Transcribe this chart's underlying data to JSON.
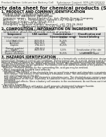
{
  "bg_color": "#f5f5f0",
  "header_left": "Product Name: Lithium Ion Battery Cell",
  "header_right_line1": "Substance Control: SDS-LIB-000610",
  "header_right_line2": "Established / Revision: Dec.7.2010",
  "title": "Safety data sheet for chemical products (SDS)",
  "section1_title": "1. PRODUCT AND COMPANY IDENTIFICATION",
  "section1_lines": [
    "  Product name: Lithium Ion Battery Cell",
    "  Product code: Cylindrical-type cell",
    "    (18186500, INR18650L, INR18650A)",
    "  Company name:   Sanyo Electric Co., Ltd.  Mobile Energy Company",
    "  Address:    2-20-1  Kamiishidori, Sumoto-City, Hyogo, Japan",
    "  Telephone number:  +81-799-26-4111",
    "  Fax number:  +81-799-26-4129",
    "  Emergency telephone number (daytime): +81-799-26-2662",
    "                        (Night and holiday): +81-799-26-4124"
  ],
  "section2_title": "2. COMPOSITION / INFORMATION ON INGREDIENTS",
  "section2_intro": "  Substance or preparation: Preparation",
  "section2_sub": "  Information about the chemical nature of product:",
  "table_headers": [
    "Component",
    "CAS number",
    "Concentration /\nConcentration range",
    "Classification and\nhazard labeling"
  ],
  "table_rows": [
    [
      "Lithium cobalt oxide\n(LiCoO2/LiCoO2x)",
      "-",
      "30-45%",
      "-"
    ],
    [
      "Iron",
      "7439-89-6",
      "15-25%",
      "-"
    ],
    [
      "Aluminum",
      "7429-90-5",
      "2-8%",
      "-"
    ],
    [
      "Graphite\n(Natural graphite)\n(Artificial graphite)",
      "7782-42-5\n7782-42-5",
      "10-25%",
      "-"
    ],
    [
      "Copper",
      "7440-50-8",
      "5-15%",
      "Sensitization of the skin\ngroup No.2"
    ],
    [
      "Organic electrolyte",
      "-",
      "10-25%",
      "Inflammable liquid"
    ]
  ],
  "section3_title": "3. HAZARDS IDENTIFICATION",
  "section3_para1": [
    "For the battery cell, chemical substances are stored in a hermetically sealed metal case, designed to withstand",
    "temperature changes in normal-use conditions. During normal use, as a result, during normal-use, there is no",
    "physical danger of ignition or explosion and there is no danger of hazardous materials leakage.",
    "  However, if exposed to a fire, added mechanical shocks, decomposed, under electric short-circuiting miss-use,",
    "the gas release valve can be operated. The battery cell case will be breached or fire patterns. Hazardous",
    "materials may be released.",
    "  Moreover, if heated strongly by the surrounding fire, acid gas may be emitted."
  ],
  "section3_bullet1": "Most important hazard and effects:",
  "section3_human": "  Human health effects:",
  "section3_inhalation": "    Inhalation: The release of the electrolyte has an anesthesia action and stimulates a respiratory tract.",
  "section3_skin": [
    "    Skin contact: The release of the electrolyte stimulates a skin. The electrolyte skin contact causes a",
    "    sore and stimulation on the skin."
  ],
  "section3_eye": [
    "    Eye contact: The release of the electrolyte stimulates eyes. The electrolyte eye contact causes a sore",
    "    and stimulation on the eye. Especially, a substance that causes a strong inflammation of the eye is",
    "    contained."
  ],
  "section3_env": [
    "    Environmental effects: Since a battery cell remains in the environment, do not throw out it into the",
    "    environment."
  ],
  "section3_bullet2": "Specific hazards:",
  "section3_specific": [
    "  If the electrolyte contacts with water, it will generate detrimental hydrogen fluoride.",
    "  Since the used electrolyte is inflammable liquid, do not bring close to fire."
  ]
}
